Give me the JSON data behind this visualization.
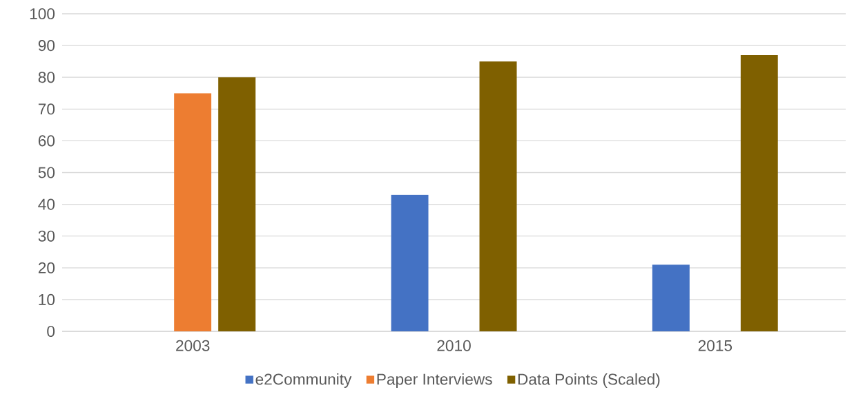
{
  "chart_data": {
    "type": "bar",
    "categories": [
      "2003",
      "2010",
      "2015"
    ],
    "series": [
      {
        "name": "e2Community",
        "color": "#4472c4",
        "values": [
          null,
          43,
          21
        ]
      },
      {
        "name": "Paper Interviews",
        "color": "#ed7d31",
        "values": [
          75,
          null,
          null
        ]
      },
      {
        "name": "Data Points (Scaled)",
        "color": "#7f6000",
        "values": [
          80,
          85,
          87
        ]
      }
    ],
    "ylim": [
      0,
      100
    ],
    "yticks": [
      0,
      10,
      20,
      30,
      40,
      50,
      60,
      70,
      80,
      90,
      100
    ],
    "grid": "y",
    "legend": "bottom"
  }
}
